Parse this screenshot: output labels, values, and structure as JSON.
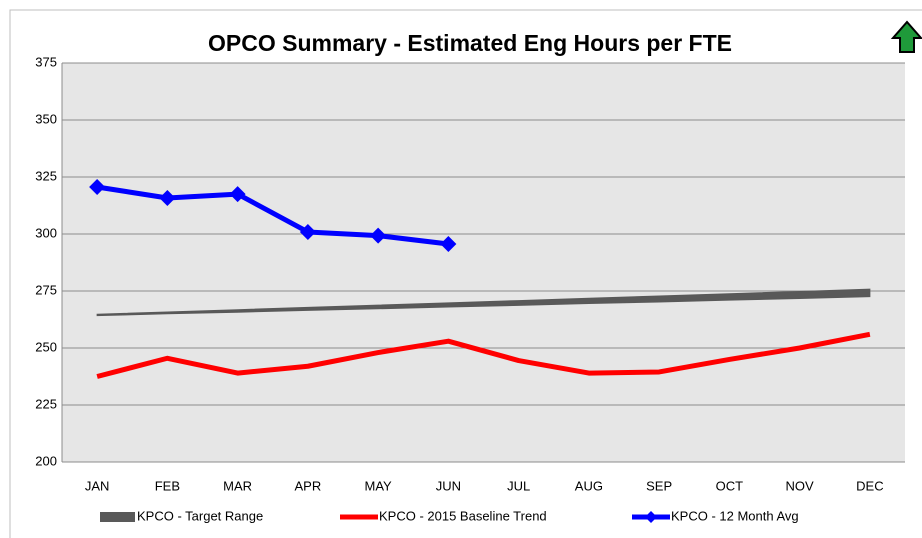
{
  "chart_data": {
    "type": "line",
    "title": "OPCO Summary - Estimated Eng Hours per FTE",
    "categories": [
      "JAN",
      "FEB",
      "MAR",
      "APR",
      "MAY",
      "JUN",
      "JUL",
      "AUG",
      "SEP",
      "OCT",
      "NOV",
      "DEC"
    ],
    "series": [
      {
        "name": "KPCO - Target Range",
        "color": "#595959",
        "kind": "range",
        "values": [
          264.2,
          265.0,
          265.7,
          266.5,
          267.2,
          268.0,
          268.7,
          269.5,
          270.2,
          271.0,
          271.7,
          272.5
        ],
        "high": [
          264.8,
          265.8,
          266.8,
          267.8,
          268.8,
          269.8,
          270.8,
          271.8,
          272.8,
          273.8,
          274.8,
          275.8
        ]
      },
      {
        "name": "KPCO - 2015 Baseline Trend",
        "color": "#ff0000",
        "values": [
          237.5,
          245.5,
          239,
          242,
          248,
          253,
          244.5,
          239,
          239.5,
          245,
          250,
          256
        ]
      },
      {
        "name": "KPCO - 12 Month Avg",
        "color": "#0000ff",
        "marker": "diamond",
        "values": [
          320.6,
          315.8,
          317.5,
          300.9,
          299.3,
          295.6,
          null,
          null,
          null,
          null,
          null,
          null
        ]
      }
    ],
    "ylim": [
      200,
      375
    ],
    "yticks": [
      200,
      225,
      250,
      275,
      300,
      325,
      350,
      375
    ],
    "grid": true,
    "legend": "bottom"
  }
}
